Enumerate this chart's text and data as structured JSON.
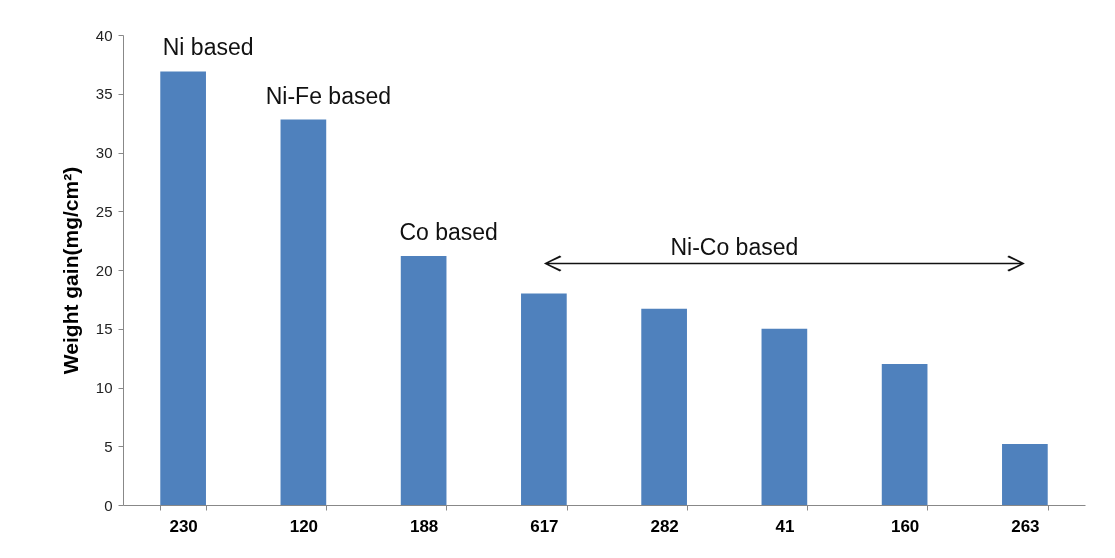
{
  "chart_data": {
    "type": "bar",
    "ylabel": "Weight gain(mg/cm²)",
    "categories": [
      "230",
      "120",
      "188",
      "617",
      "282",
      "41",
      "160",
      "263"
    ],
    "values": [
      36.9,
      32.8,
      21.2,
      18.0,
      16.7,
      15.0,
      12.0,
      5.2
    ],
    "color": "#4f81bd",
    "ylim": [
      0,
      40
    ],
    "yticks": [
      0,
      5,
      10,
      15,
      20,
      25,
      30,
      35,
      40
    ],
    "grid": false,
    "annotations": [
      "Ni based",
      "Ni-Fe based",
      "Co based",
      "Ni-Co based"
    ]
  }
}
